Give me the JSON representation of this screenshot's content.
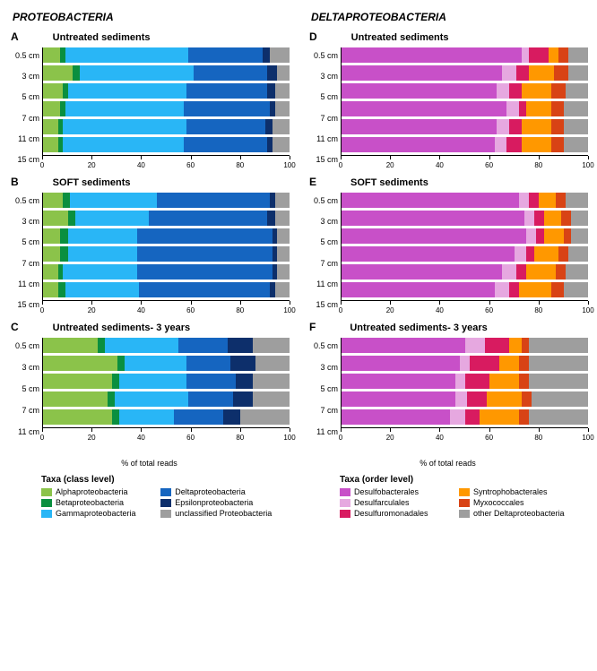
{
  "headers": {
    "left": "PROTEOBACTERIA",
    "right": "DELTAPROTEOBACTERIA"
  },
  "xaxis": {
    "label": "% of total reads",
    "ticks": [
      0,
      20,
      40,
      60,
      80,
      100
    ]
  },
  "colors_left": {
    "alpha": "#8bc34a",
    "beta": "#0a8f3f",
    "gamma": "#29b6f6",
    "delta": "#1565c0",
    "epsilon": "#0d2f6b",
    "uncl": "#9e9e9e"
  },
  "colors_right": {
    "desbact": "#c850c8",
    "desarc": "#e6a8e0",
    "desurom": "#d81b60",
    "syntro": "#ff9800",
    "myxo": "#d84315",
    "other": "#9e9e9e"
  },
  "legend_left": {
    "title": "Taxa (class level)",
    "items": [
      {
        "key": "alpha",
        "label": "Alphaproteobacteria"
      },
      {
        "key": "delta",
        "label": "Deltaproteobacteria"
      },
      {
        "key": "beta",
        "label": "Betaproteobacteria"
      },
      {
        "key": "epsilon",
        "label": "Epsilonproteobacteria"
      },
      {
        "key": "gamma",
        "label": "Gammaproteobacteria"
      },
      {
        "key": "uncl",
        "label": "unclassified Proteobacteria"
      }
    ]
  },
  "legend_right": {
    "title": "Taxa (order level)",
    "items": [
      {
        "key": "desbact",
        "label": "Desulfobacterales"
      },
      {
        "key": "syntro",
        "label": "Syntrophobacterales"
      },
      {
        "key": "desarc",
        "label": "Desulfarculales"
      },
      {
        "key": "myxo",
        "label": "Myxococcales"
      },
      {
        "key": "desurom",
        "label": "Desulfuromonadales"
      },
      {
        "key": "other",
        "label": "other Deltaproteobacteria"
      }
    ]
  },
  "panels_left": [
    {
      "letter": "A",
      "title": "Untreated sediments",
      "ylabels": [
        "0.5 cm",
        "3 cm",
        "5 cm",
        "7 cm",
        "11 cm",
        "15 cm"
      ],
      "rows": [
        {
          "alpha": 7,
          "beta": 2,
          "gamma": 50,
          "delta": 30,
          "epsilon": 3,
          "uncl": 8
        },
        {
          "alpha": 12,
          "beta": 3,
          "gamma": 46,
          "delta": 30,
          "epsilon": 4,
          "uncl": 5
        },
        {
          "alpha": 8,
          "beta": 2,
          "gamma": 48,
          "delta": 33,
          "epsilon": 3,
          "uncl": 6
        },
        {
          "alpha": 7,
          "beta": 2,
          "gamma": 48,
          "delta": 35,
          "epsilon": 2,
          "uncl": 6
        },
        {
          "alpha": 6,
          "beta": 2,
          "gamma": 50,
          "delta": 32,
          "epsilon": 3,
          "uncl": 7
        },
        {
          "alpha": 6,
          "beta": 2,
          "gamma": 49,
          "delta": 34,
          "epsilon": 2,
          "uncl": 7
        }
      ]
    },
    {
      "letter": "B",
      "title": "SOFT sediments",
      "ylabels": [
        "0.5 cm",
        "3 cm",
        "5 cm",
        "7 cm",
        "11 cm",
        "15 cm"
      ],
      "rows": [
        {
          "alpha": 8,
          "beta": 3,
          "gamma": 35,
          "delta": 46,
          "epsilon": 2,
          "uncl": 6
        },
        {
          "alpha": 10,
          "beta": 3,
          "gamma": 30,
          "delta": 48,
          "epsilon": 3,
          "uncl": 6
        },
        {
          "alpha": 7,
          "beta": 3,
          "gamma": 28,
          "delta": 55,
          "epsilon": 2,
          "uncl": 5
        },
        {
          "alpha": 7,
          "beta": 3,
          "gamma": 28,
          "delta": 55,
          "epsilon": 2,
          "uncl": 5
        },
        {
          "alpha": 6,
          "beta": 2,
          "gamma": 30,
          "delta": 55,
          "epsilon": 2,
          "uncl": 5
        },
        {
          "alpha": 6,
          "beta": 3,
          "gamma": 30,
          "delta": 53,
          "epsilon": 2,
          "uncl": 6
        }
      ]
    },
    {
      "letter": "C",
      "title": "Untreated sediments- 3 years",
      "ylabels": [
        "0.5 cm",
        "3 cm",
        "5 cm",
        "7 cm",
        "11 cm"
      ],
      "rows": [
        {
          "alpha": 22,
          "beta": 3,
          "gamma": 30,
          "delta": 20,
          "epsilon": 10,
          "uncl": 15
        },
        {
          "alpha": 30,
          "beta": 3,
          "gamma": 25,
          "delta": 18,
          "epsilon": 10,
          "uncl": 14
        },
        {
          "alpha": 28,
          "beta": 3,
          "gamma": 27,
          "delta": 20,
          "epsilon": 7,
          "uncl": 15
        },
        {
          "alpha": 26,
          "beta": 3,
          "gamma": 30,
          "delta": 18,
          "epsilon": 8,
          "uncl": 15
        },
        {
          "alpha": 28,
          "beta": 3,
          "gamma": 22,
          "delta": 20,
          "epsilon": 7,
          "uncl": 20
        }
      ]
    }
  ],
  "panels_right": [
    {
      "letter": "D",
      "title": "Untreated sediments",
      "ylabels": [
        "0.5 cm",
        "3 cm",
        "5 cm",
        "7 cm",
        "11 cm",
        "15 cm"
      ],
      "rows": [
        {
          "desbact": 73,
          "desarc": 3,
          "desurom": 8,
          "syntro": 4,
          "myxo": 4,
          "other": 8
        },
        {
          "desbact": 65,
          "desarc": 6,
          "desurom": 5,
          "syntro": 10,
          "myxo": 6,
          "other": 8
        },
        {
          "desbact": 63,
          "desarc": 5,
          "desurom": 5,
          "syntro": 12,
          "myxo": 6,
          "other": 9
        },
        {
          "desbact": 67,
          "desarc": 5,
          "desurom": 3,
          "syntro": 10,
          "myxo": 5,
          "other": 10
        },
        {
          "desbact": 63,
          "desarc": 5,
          "desurom": 5,
          "syntro": 12,
          "myxo": 5,
          "other": 10
        },
        {
          "desbact": 62,
          "desarc": 5,
          "desurom": 6,
          "syntro": 12,
          "myxo": 5,
          "other": 10
        }
      ]
    },
    {
      "letter": "E",
      "title": "SOFT sediments",
      "ylabels": [
        "0.5 cm",
        "3 cm",
        "5 cm",
        "7 cm",
        "11 cm",
        "15 cm"
      ],
      "rows": [
        {
          "desbact": 72,
          "desarc": 4,
          "desurom": 4,
          "syntro": 7,
          "myxo": 4,
          "other": 9
        },
        {
          "desbact": 74,
          "desarc": 4,
          "desurom": 4,
          "syntro": 7,
          "myxo": 4,
          "other": 7
        },
        {
          "desbact": 75,
          "desarc": 4,
          "desurom": 3,
          "syntro": 8,
          "myxo": 3,
          "other": 7
        },
        {
          "desbact": 70,
          "desarc": 5,
          "desurom": 3,
          "syntro": 10,
          "myxo": 4,
          "other": 8
        },
        {
          "desbact": 65,
          "desarc": 6,
          "desurom": 4,
          "syntro": 12,
          "myxo": 4,
          "other": 9
        },
        {
          "desbact": 62,
          "desarc": 6,
          "desurom": 4,
          "syntro": 13,
          "myxo": 5,
          "other": 10
        }
      ]
    },
    {
      "letter": "F",
      "title": "Untreated sediments- 3 years",
      "ylabels": [
        "0.5 cm",
        "3 cm",
        "5 cm",
        "7 cm",
        "11 cm"
      ],
      "rows": [
        {
          "desbact": 50,
          "desarc": 8,
          "desurom": 10,
          "syntro": 5,
          "myxo": 3,
          "other": 24
        },
        {
          "desbact": 48,
          "desarc": 4,
          "desurom": 12,
          "syntro": 8,
          "myxo": 4,
          "other": 24
        },
        {
          "desbact": 46,
          "desarc": 4,
          "desurom": 10,
          "syntro": 12,
          "myxo": 4,
          "other": 24
        },
        {
          "desbact": 46,
          "desarc": 5,
          "desurom": 8,
          "syntro": 14,
          "myxo": 4,
          "other": 23
        },
        {
          "desbact": 44,
          "desarc": 6,
          "desurom": 6,
          "syntro": 16,
          "myxo": 4,
          "other": 24
        }
      ]
    }
  ]
}
